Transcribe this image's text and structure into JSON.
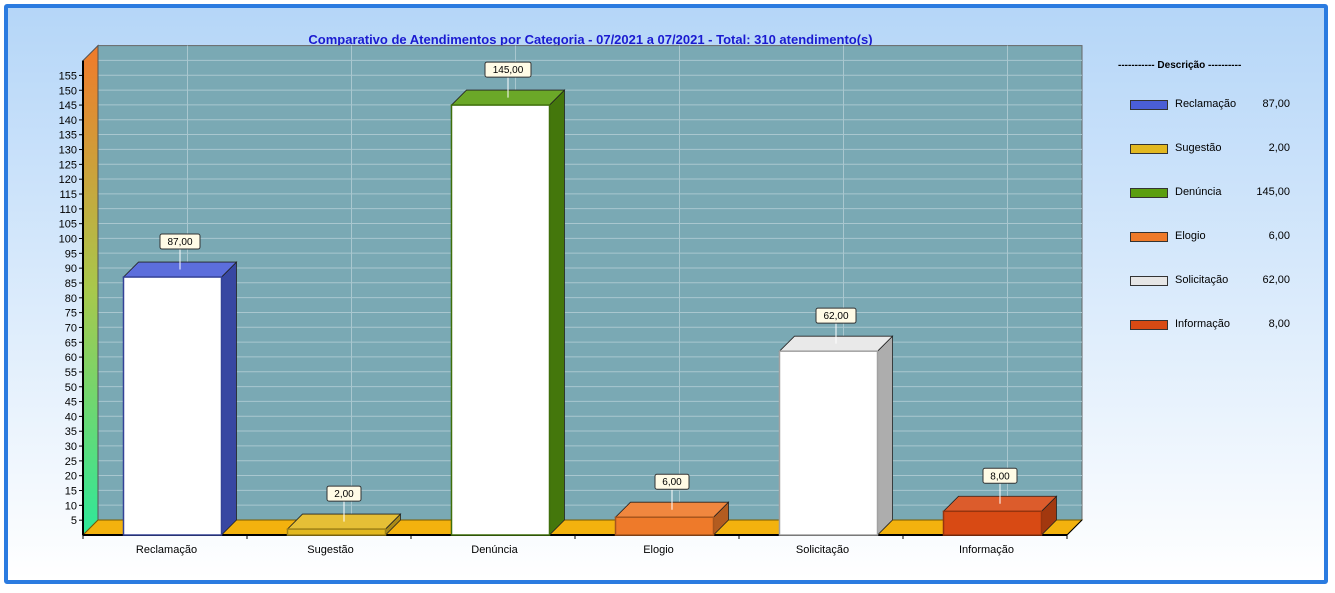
{
  "chart_data": {
    "type": "bar",
    "title": "Comparativo de Atendimentos por Categoria - 07/2021 a 07/2021 - Total: 310 atendimento(s)",
    "categories": [
      "Reclamação",
      "Sugestão",
      "Denúncia",
      "Elogio",
      "Solicitação",
      "Informação"
    ],
    "values": [
      87,
      2,
      145,
      6,
      62,
      8
    ],
    "value_labels": [
      "87,00",
      "2,00",
      "145,00",
      "6,00",
      "62,00",
      "8,00"
    ],
    "colors": [
      "#4a5ed8",
      "#e2b820",
      "#5a9e10",
      "#ee7a2a",
      "#e6e6e6",
      "#d84a14"
    ],
    "yticks": [
      5,
      10,
      15,
      20,
      25,
      30,
      35,
      40,
      45,
      50,
      55,
      60,
      65,
      70,
      75,
      80,
      85,
      90,
      95,
      100,
      105,
      110,
      115,
      120,
      125,
      130,
      135,
      140,
      145,
      150,
      155
    ],
    "ylim": [
      0,
      160
    ],
    "grid": true,
    "legend_position": "right",
    "legend": {
      "heading": "----------- Descrição ----------",
      "items": [
        {
          "label": "Reclamação",
          "value": "87,00"
        },
        {
          "label": "Sugestão",
          "value": "2,00"
        },
        {
          "label": "Denúncia",
          "value": "145,00"
        },
        {
          "label": "Elogio",
          "value": "6,00"
        },
        {
          "label": "Solicitação",
          "value": "62,00"
        },
        {
          "label": "Informação",
          "value": "8,00"
        }
      ]
    }
  }
}
